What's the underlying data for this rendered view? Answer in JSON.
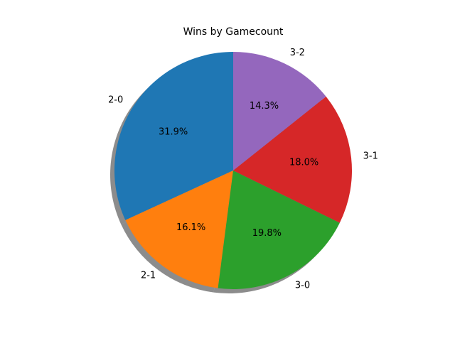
{
  "chart_data": {
    "type": "pie",
    "title": "Wins by Gamecount",
    "categories": [
      "2-0",
      "2-1",
      "3-0",
      "3-1",
      "3-2"
    ],
    "values": [
      31.9,
      16.1,
      19.8,
      18.0,
      14.3
    ],
    "percent_labels": [
      "31.9%",
      "16.1%",
      "19.8%",
      "18.0%",
      "14.3%"
    ],
    "colors": [
      "#1f77b4",
      "#ff7f0e",
      "#2ca02c",
      "#d62728",
      "#9467bd"
    ],
    "start_angle_deg": 90,
    "direction": "counterclockwise",
    "shadow": true
  }
}
